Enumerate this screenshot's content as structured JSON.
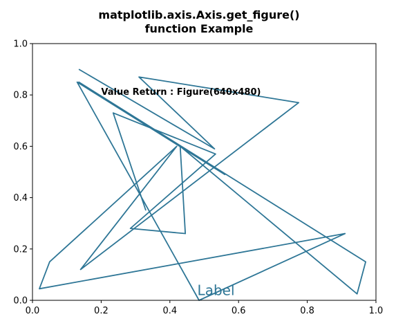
{
  "chart_data": {
    "type": "line",
    "title": "matplotlib.axis.Axis.get_figure()\nfunction Example",
    "xlabel": "",
    "ylabel": "",
    "xlim": [
      0,
      1
    ],
    "ylim": [
      0,
      1
    ],
    "grid": false,
    "line_color": "#2e7696",
    "x_ticks": [
      "0.0",
      "0.2",
      "0.4",
      "0.6",
      "0.8",
      "1.0"
    ],
    "y_ticks": [
      "0.0",
      "0.2",
      "0.4",
      "0.6",
      "0.8",
      "1.0"
    ],
    "series": [
      {
        "x": [
          0.135,
          0.53,
          0.31,
          0.775,
          0.14,
          0.42,
          0.05,
          0.02,
          0.91,
          0.485,
          0.13,
          0.56,
          0.135,
          0.97,
          0.945,
          0.43,
          0.445,
          0.285,
          0.533,
          0.235,
          0.33
        ],
        "y": [
          0.9,
          0.59,
          0.87,
          0.77,
          0.12,
          0.6,
          0.15,
          0.045,
          0.26,
          0.0,
          0.85,
          0.49,
          0.85,
          0.15,
          0.025,
          0.6,
          0.26,
          0.28,
          0.57,
          0.73,
          0.35
        ]
      }
    ],
    "annotations": [
      {
        "text": "Value Return : Figure(640x480)",
        "x": 0.2,
        "y": 0.8,
        "weight": "bold"
      },
      {
        "text": "Label",
        "x": 0.48,
        "y": 0.02,
        "weight": "normal"
      }
    ]
  }
}
